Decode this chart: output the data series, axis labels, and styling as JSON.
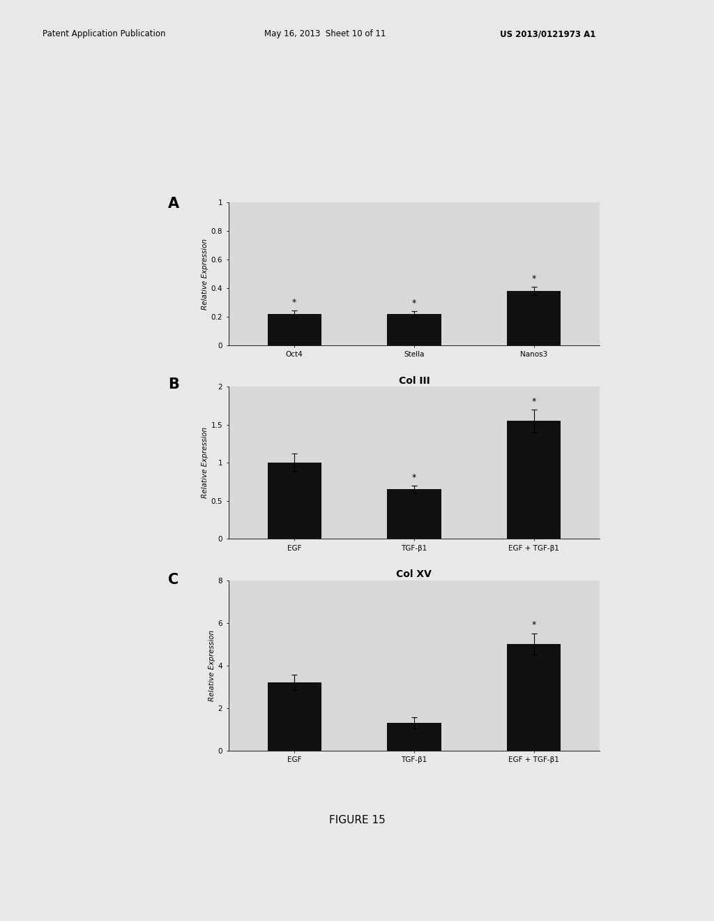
{
  "header_left": "Patent Application Publication",
  "header_mid": "May 16, 2013  Sheet 10 of 11",
  "header_right": "US 2013/0121973 A1",
  "figure_label": "FIGURE 15",
  "background_color": "#e8e8e8",
  "plot_bg_color": "#d8d8d8",
  "panel_A": {
    "label": "A",
    "categories": [
      "Oct4",
      "Stella",
      "Nanos3"
    ],
    "values": [
      0.22,
      0.22,
      0.38
    ],
    "errors": [
      0.025,
      0.02,
      0.03
    ],
    "ylim": [
      0,
      1.0
    ],
    "yticks": [
      0,
      0.2,
      0.4,
      0.6,
      0.8,
      1.0
    ],
    "ytick_labels": [
      "0",
      "0.2",
      "0.4",
      "0.6",
      "0.8",
      "1"
    ],
    "ylabel": "Relative Expression",
    "bar_color": "#111111",
    "has_stars": [
      true,
      true,
      true
    ]
  },
  "panel_B": {
    "label": "B",
    "title": "Col III",
    "categories": [
      "EGF",
      "TGF-β1",
      "EGF + TGF-β1"
    ],
    "values": [
      1.0,
      0.65,
      1.55
    ],
    "errors": [
      0.12,
      0.05,
      0.15
    ],
    "ylim": [
      0,
      2.0
    ],
    "yticks": [
      0,
      0.5,
      1.0,
      1.5,
      2.0
    ],
    "ytick_labels": [
      "0",
      "0.5",
      "1",
      "1.5",
      "2"
    ],
    "ylabel": "Relative Expression",
    "bar_color": "#111111",
    "has_stars": [
      false,
      true,
      true
    ]
  },
  "panel_C": {
    "label": "C",
    "title": "Col XV",
    "categories": [
      "EGF",
      "TGF-β1",
      "EGF + TGF-β1"
    ],
    "values": [
      3.2,
      1.3,
      5.0
    ],
    "errors": [
      0.35,
      0.25,
      0.5
    ],
    "ylim": [
      0,
      8.0
    ],
    "yticks": [
      0,
      2,
      4,
      6,
      8
    ],
    "ytick_labels": [
      "0",
      "2",
      "4",
      "6",
      "8"
    ],
    "ylabel": "Relative Expression",
    "bar_color": "#111111",
    "has_stars": [
      false,
      false,
      true
    ]
  }
}
